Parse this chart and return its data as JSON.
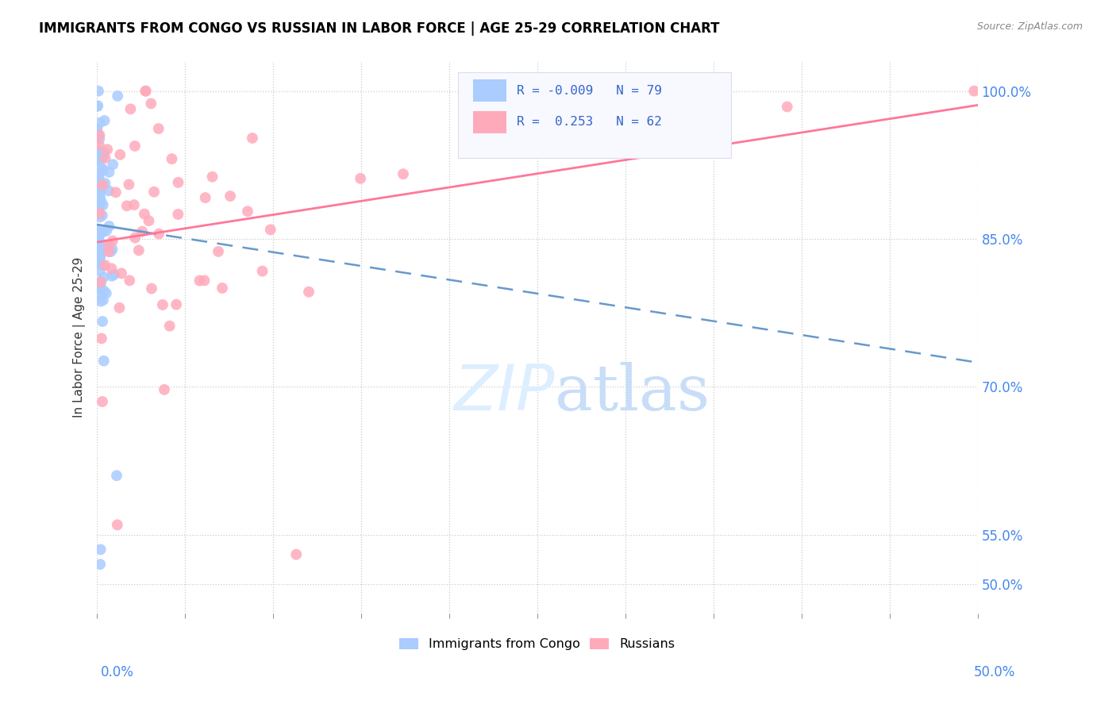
{
  "title": "IMMIGRANTS FROM CONGO VS RUSSIAN IN LABOR FORCE | AGE 25-29 CORRELATION CHART",
  "source": "Source: ZipAtlas.com",
  "ylabel": "In Labor Force | Age 25-29",
  "ylabel_ticks": [
    "50.0%",
    "55.0%",
    "70.0%",
    "85.0%",
    "100.0%"
  ],
  "ylabel_values": [
    0.5,
    0.55,
    0.7,
    0.85,
    1.0
  ],
  "xmin": 0.0,
  "xmax": 0.5,
  "ymin": 0.47,
  "ymax": 1.03,
  "congo_R": -0.009,
  "congo_N": 79,
  "russian_R": 0.253,
  "russian_N": 62,
  "congo_color": "#aaccff",
  "russian_color": "#ffaabb",
  "congo_line_color": "#6699cc",
  "russian_line_color": "#ff7799",
  "watermark_color": "#ddeeff",
  "legend_box_color": "#f8f8ff",
  "legend_border_color": "#ddddee"
}
